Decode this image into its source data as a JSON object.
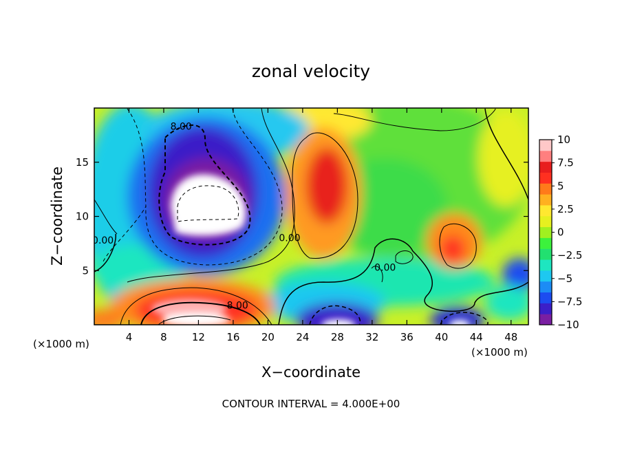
{
  "chart_data": {
    "type": "heatmap",
    "title": "zonal velocity",
    "xlabel": "X−coordinate",
    "ylabel": "Z−coordinate",
    "x_unit_left": "(×1000 m)",
    "x_unit_right": "(×1000 m)",
    "footer": "CONTOUR INTERVAL = 4.000E+00",
    "xlim": [
      0,
      50
    ],
    "ylim": [
      0,
      20
    ],
    "x_ticks": [
      4,
      8,
      12,
      16,
      20,
      24,
      28,
      32,
      36,
      40,
      44,
      48
    ],
    "x_tick_labels": [
      "4",
      "8",
      "12",
      "16",
      "20",
      "24",
      "28",
      "32",
      "36",
      "40",
      "44",
      "48"
    ],
    "y_ticks": [
      5,
      10,
      15
    ],
    "y_tick_labels": [
      "5",
      "10",
      "15"
    ],
    "colorbar": {
      "min": -10,
      "max": 10,
      "ticks": [
        10,
        7.5,
        5,
        2.5,
        0,
        -2.5,
        -5,
        -7.5,
        -10
      ],
      "tick_labels": [
        "10",
        "7.5",
        "5",
        "2.5",
        "0",
        "−2.5",
        "−5",
        "−7.5",
        "−10"
      ],
      "colors": [
        "#7a1fa2",
        "#3b1fc8",
        "#1c4cf0",
        "#1c8cf5",
        "#1ec8f0",
        "#1ee6c0",
        "#22e070",
        "#3cf23c",
        "#a0f020",
        "#e6f020",
        "#ffe830",
        "#ffb020",
        "#ff7a1a",
        "#ff3020",
        "#e81e1e",
        "#ff7f7f",
        "#ffc8c8"
      ]
    },
    "contour_interval": 4,
    "contour_labels": [
      {
        "text": "8.00",
        "x": 10,
        "y": 18
      },
      {
        "text": "0.00",
        "x": 1,
        "y": 7.5
      },
      {
        "text": "0.00",
        "x": 22.5,
        "y": 7.7
      },
      {
        "text": "0.00",
        "x": 33.5,
        "y": 5
      },
      {
        "text": "8.00",
        "x": 16.5,
        "y": 1.5
      }
    ],
    "field_features": [
      {
        "kind": "min",
        "x": 11.5,
        "y": 12.5,
        "value": -10
      },
      {
        "kind": "max",
        "x": 27,
        "y": 12.5,
        "value": 9
      },
      {
        "kind": "max",
        "x": 12,
        "y": 1.5,
        "value": 10
      },
      {
        "kind": "max",
        "x": 41.5,
        "y": 6.5,
        "value": 8
      },
      {
        "kind": "min",
        "x": 28,
        "y": 1,
        "value": -10
      },
      {
        "kind": "min",
        "x": 42,
        "y": 0.6,
        "value": -10
      }
    ]
  }
}
